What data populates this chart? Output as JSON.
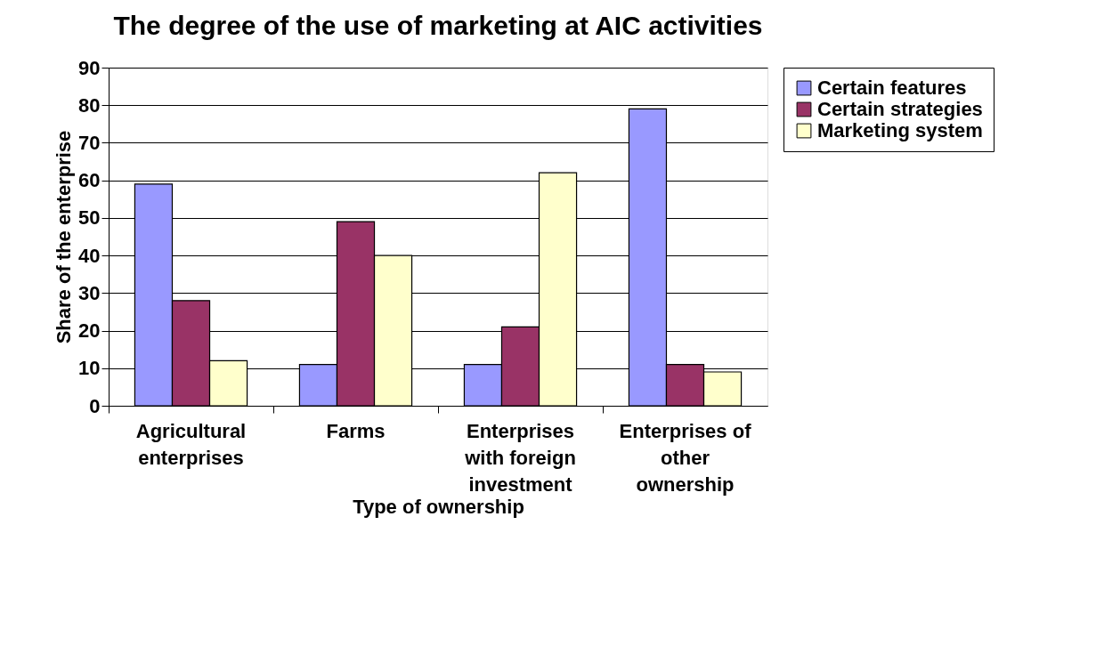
{
  "chart_data": {
    "type": "bar",
    "title": "The degree of the use of marketing at AIC activities",
    "xlabel": "Type of ownership",
    "ylabel": "Share of the enterprise",
    "categories": [
      "Agricultural enterprises",
      "Farms",
      "Enterprises with foreign investment",
      "Enterprises of other ownership"
    ],
    "series": [
      {
        "name": "Certain features",
        "color": "#9999ff",
        "values": [
          59,
          11,
          11,
          79
        ]
      },
      {
        "name": "Certain strategies",
        "color": "#993366",
        "values": [
          28,
          49,
          21,
          11
        ]
      },
      {
        "name": "Marketing system",
        "color": "#ffffcc",
        "values": [
          12,
          40,
          62,
          9
        ]
      }
    ],
    "ylim": [
      0,
      90
    ],
    "yticks": [
      0,
      10,
      20,
      30,
      40,
      50,
      60,
      70,
      80,
      90
    ],
    "grid": "y",
    "legend": "right"
  }
}
